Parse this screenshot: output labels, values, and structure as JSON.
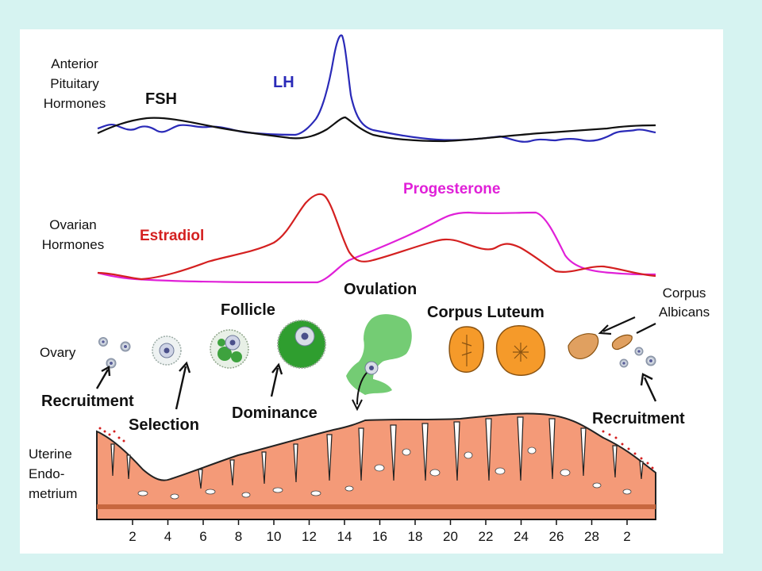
{
  "labels": {
    "anterior": [
      "Anterior",
      "Pituitary",
      "Hormones"
    ],
    "ovarian": [
      "Ovarian",
      "Hormones"
    ],
    "uterine": [
      "Uterine",
      "Endo-",
      "metrium"
    ],
    "ovary": "Ovary",
    "fsh": "FSH",
    "lh": "LH",
    "estradiol": "Estradiol",
    "progesterone": "Progesterone",
    "follicle": "Follicle",
    "ovulation": "Ovulation",
    "corpus_luteum": "Corpus Luteum",
    "corpus_albicans": [
      "Corpus",
      "Albicans"
    ],
    "recruitment_left": "Recruitment",
    "selection": "Selection",
    "dominance": "Dominance",
    "recruitment_right": "Recruitment"
  },
  "axis": {
    "ticks": [
      "2",
      "4",
      "6",
      "8",
      "10",
      "12",
      "14",
      "16",
      "18",
      "20",
      "22",
      "24",
      "26",
      "28",
      "2"
    ]
  },
  "colors": {
    "background": "#d6f3f1",
    "fsh": "#111111",
    "lh": "#2a2ab8",
    "estradiol": "#d42020",
    "progesterone": "#e020d8",
    "follicle": "#2f9e2f",
    "corpus": "#f59a2a",
    "endometrium": "#f49a78"
  }
}
